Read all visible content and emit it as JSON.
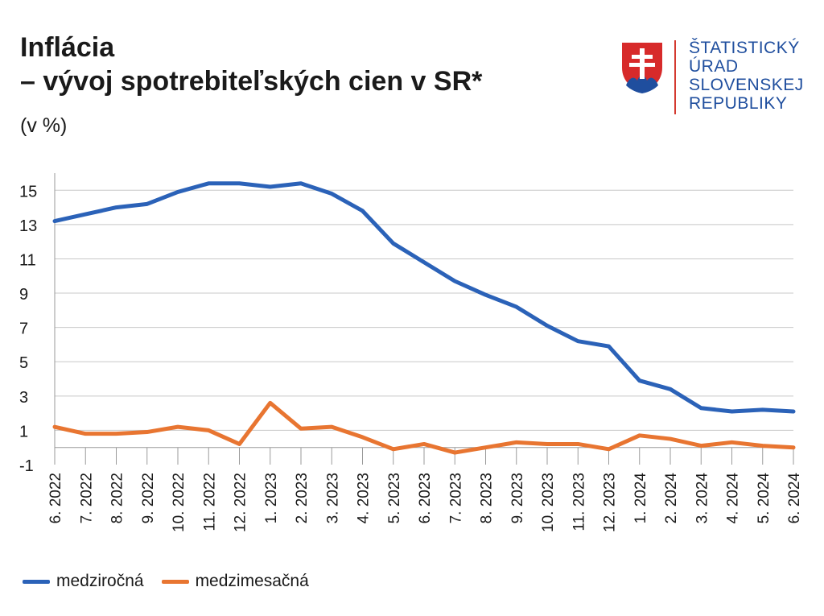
{
  "title_line1": "Inflácia",
  "title_line2": "– vývoj spotrebiteľských cien v SR*",
  "subtitle": "(v %)",
  "logo": {
    "lines": [
      "ŠTATISTICKÝ",
      "ÚRAD",
      "SLOVENSKEJ",
      "REPUBLIKY"
    ],
    "text_color": "#1f4e9e",
    "rule_color": "#d43a2f",
    "emblem": "slovak-coat-of-arms-icon"
  },
  "chart_data": {
    "type": "line",
    "categories": [
      "6. 2022",
      "7. 2022",
      "8. 2022",
      "9. 2022",
      "10. 2022",
      "11. 2022",
      "12. 2022",
      "1. 2023",
      "2. 2023",
      "3. 2023",
      "4. 2023",
      "5. 2023",
      "6. 2023",
      "7. 2023",
      "8. 2023",
      "9. 2023",
      "10. 2023",
      "11. 2023",
      "12. 2023",
      "1. 2024",
      "2. 2024",
      "3. 2024",
      "4. 2024",
      "5. 2024",
      "6. 2024"
    ],
    "series": [
      {
        "name": "medziročná",
        "color": "#2b62b8",
        "values": [
          13.2,
          13.6,
          14.0,
          14.2,
          14.9,
          15.4,
          15.4,
          15.2,
          15.4,
          14.8,
          13.8,
          11.9,
          10.8,
          9.7,
          8.9,
          8.2,
          7.1,
          6.2,
          5.9,
          3.9,
          3.4,
          2.3,
          2.1,
          2.2,
          2.1
        ]
      },
      {
        "name": "medzimesačná",
        "color": "#e87531",
        "values": [
          1.2,
          0.8,
          0.8,
          0.9,
          1.2,
          1.0,
          0.2,
          2.6,
          1.1,
          1.2,
          0.6,
          -0.1,
          0.2,
          -0.3,
          0.0,
          0.3,
          0.2,
          0.2,
          -0.1,
          0.7,
          0.5,
          0.1,
          0.3,
          0.1,
          0.0
        ]
      }
    ],
    "yticks": [
      15,
      13,
      11,
      9,
      7,
      5,
      3,
      1,
      -1
    ],
    "ylim": [
      -1,
      16
    ],
    "grid": true,
    "legend_position": "bottom-left",
    "xlabel": "",
    "ylabel": ""
  }
}
